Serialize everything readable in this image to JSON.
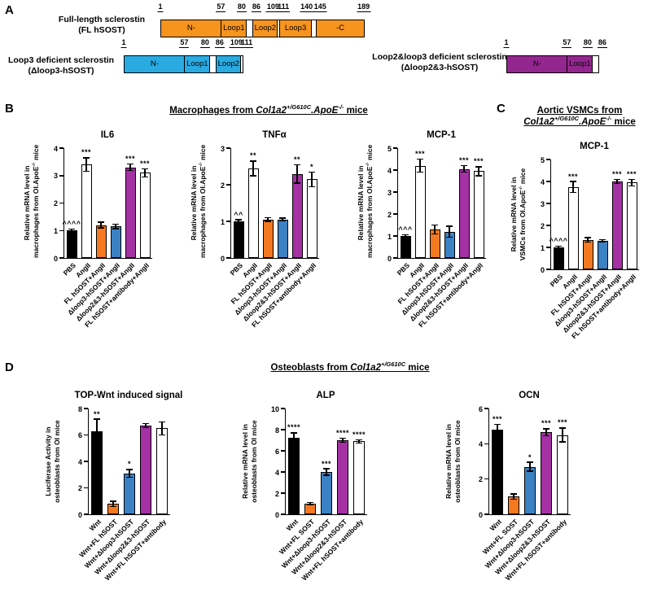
{
  "panels": {
    "A": {
      "label": "A",
      "constructs": [
        {
          "id": "fl-hsost",
          "name_lines": [
            "Full-length sclerostin",
            "(FL hSOST)"
          ],
          "color": "#F7941E",
          "ticks": [
            1,
            57,
            80,
            86,
            109,
            111,
            140,
            145,
            189
          ],
          "segments": [
            {
              "label": "N-",
              "from": 1,
              "to": 57,
              "filled": true
            },
            {
              "label": "Loop1",
              "from": 57,
              "to": 80,
              "filled": true
            },
            {
              "label": "",
              "from": 80,
              "to": 86,
              "filled": false
            },
            {
              "label": "Loop2",
              "from": 86,
              "to": 109,
              "filled": true
            },
            {
              "label": "",
              "from": 109,
              "to": 111,
              "filled": false
            },
            {
              "label": "Loop3",
              "from": 111,
              "to": 140,
              "filled": true
            },
            {
              "label": "",
              "from": 140,
              "to": 145,
              "filled": false
            },
            {
              "label": "-C",
              "from": 145,
              "to": 189,
              "filled": true
            }
          ]
        },
        {
          "id": "dloop3-hsost",
          "name_lines": [
            "Loop3 deficient sclerostin",
            "(Δloop3-hSOST)"
          ],
          "color": "#29ABE2",
          "ticks": [
            1,
            57,
            80,
            86,
            109,
            111
          ],
          "segments": [
            {
              "label": "N-",
              "from": 1,
              "to": 57,
              "filled": true
            },
            {
              "label": "Loop1",
              "from": 57,
              "to": 80,
              "filled": true
            },
            {
              "label": "",
              "from": 80,
              "to": 86,
              "filled": false
            },
            {
              "label": "Loop2",
              "from": 86,
              "to": 109,
              "filled": true
            },
            {
              "label": "",
              "from": 109,
              "to": 111,
              "filled": false
            }
          ]
        },
        {
          "id": "dloop23-hsost",
          "name_lines": [
            "Loop2&loop3 deficient sclerostin",
            "(Δloop2&3-hSOST)"
          ],
          "color": "#94278F",
          "ticks": [
            1,
            57,
            80,
            86
          ],
          "segments": [
            {
              "label": "N-",
              "from": 1,
              "to": 57,
              "filled": true
            },
            {
              "label": "Loop1",
              "from": 57,
              "to": 80,
              "filled": true
            },
            {
              "label": "",
              "from": 80,
              "to": 86,
              "filled": false
            }
          ]
        }
      ]
    },
    "B": {
      "label": "B",
      "header_lines": [
        [
          {
            "t": "Macrophages from "
          },
          {
            "t": "Col1a2",
            "i": true
          },
          {
            "t": "+/G610C",
            "i": true,
            "sup": true
          },
          {
            "t": ".",
            "i": true
          },
          {
            "t": "ApoE",
            "i": true
          },
          {
            "t": "-/-",
            "i": true,
            "sup": true
          },
          {
            "t": " mice"
          }
        ]
      ]
    },
    "C": {
      "label": "C",
      "header_lines": [
        [
          {
            "t": "Aortic VSMCs from"
          }
        ],
        [
          {
            "t": "Col1a2",
            "i": true
          },
          {
            "t": "+/G610C",
            "i": true,
            "sup": true
          },
          {
            "t": ".",
            "i": true
          },
          {
            "t": "ApoE",
            "i": true
          },
          {
            "t": "-/-",
            "i": true,
            "sup": true
          },
          {
            "t": " mice"
          }
        ]
      ]
    },
    "D": {
      "label": "D",
      "header_lines": [
        [
          {
            "t": "Osteoblasts from "
          },
          {
            "t": "Col1a2",
            "i": true
          },
          {
            "t": "+/G610C",
            "i": true,
            "sup": true
          },
          {
            "t": " mice"
          }
        ]
      ]
    }
  },
  "chart_data": [
    {
      "panel": "B",
      "type": "bar",
      "title": "IL6",
      "ylabel_lines": [
        "Relative mRNA level in",
        "macrophages from OI.ApoE^{-/-} mice"
      ],
      "ylim": [
        0,
        4
      ],
      "yticks": [
        0,
        1,
        2,
        3,
        4
      ],
      "categories": [
        "PBS",
        "AngII",
        "FL hSOST+AngII",
        "Δloop3-hSOST+AngII",
        "Δloop2&3-hSOST+AngII",
        "FL hSOST+antibody+AngII"
      ],
      "values": [
        1.0,
        3.4,
        1.2,
        1.15,
        3.3,
        3.1
      ],
      "errors": [
        0.05,
        0.25,
        0.1,
        0.08,
        0.12,
        0.15
      ],
      "significance": [
        "^^^^",
        "***",
        "",
        "",
        "***",
        "***"
      ],
      "bar_colors": [
        "#000000",
        "#FFFFFF",
        "#F47920",
        "#3B82C4",
        "#A531A5",
        "#FFFFFF"
      ]
    },
    {
      "panel": "B",
      "type": "bar",
      "title": "TNFα",
      "ylabel_lines": [
        "Relative mRNA level in",
        "macrophages from OI.ApoE^{-/-} mice"
      ],
      "ylim": [
        0,
        3
      ],
      "yticks": [
        0,
        1,
        2,
        3
      ],
      "categories": [
        "PBS",
        "AngII",
        "FL hSOST+AngII",
        "Δloop3-hSOST+AngII",
        "Δloop2&3-hSOST+AngII",
        "FL hSOST+antibody+AngII"
      ],
      "values": [
        1.0,
        2.45,
        1.05,
        1.05,
        2.3,
        2.15
      ],
      "errors": [
        0.04,
        0.2,
        0.05,
        0.04,
        0.25,
        0.2
      ],
      "significance": [
        "^^",
        "**",
        "",
        "",
        "**",
        "*"
      ],
      "bar_colors": [
        "#000000",
        "#FFFFFF",
        "#F47920",
        "#3B82C4",
        "#A531A5",
        "#FFFFFF"
      ]
    },
    {
      "panel": "B",
      "type": "bar",
      "title": "MCP-1",
      "ylabel_lines": [
        "Relative mRNA level in",
        "macrophages from OI.ApoE^{-/-} mice"
      ],
      "ylim": [
        0,
        5
      ],
      "yticks": [
        0,
        1,
        2,
        3,
        4,
        5
      ],
      "categories": [
        "PBS",
        "AngII",
        "FL hSOST+AngII",
        "Δloop3-hSOST+AngII",
        "Δloop2&3-hSOST+AngII",
        "FL hSOST+antibody+AngII"
      ],
      "values": [
        1.0,
        4.2,
        1.3,
        1.2,
        4.05,
        3.95
      ],
      "errors": [
        0.05,
        0.3,
        0.2,
        0.25,
        0.15,
        0.2
      ],
      "significance": [
        "^^^",
        "***",
        "",
        "",
        "***",
        "***"
      ],
      "bar_colors": [
        "#000000",
        "#FFFFFF",
        "#F47920",
        "#3B82C4",
        "#A531A5",
        "#FFFFFF"
      ]
    },
    {
      "panel": "C",
      "type": "bar",
      "title": "MCP-1",
      "ylabel_lines": [
        "Relative mRNA level in",
        "VSMCs from OI.ApoE^{-/-} mice"
      ],
      "ylim": [
        0,
        5
      ],
      "yticks": [
        0,
        1,
        2,
        3,
        4,
        5
      ],
      "categories": [
        "PBS",
        "AngII",
        "FL hSOST+AngII",
        "Δloop3-hSOST+AngII",
        "Δloop2&3-hSOST+AngII",
        "FL hSOST+antibody+AngII"
      ],
      "values": [
        1.0,
        3.75,
        1.35,
        1.3,
        4.0,
        3.95
      ],
      "errors": [
        0.05,
        0.25,
        0.1,
        0.05,
        0.1,
        0.15
      ],
      "significance": [
        "^^^^",
        "***",
        "",
        "",
        "***",
        "***"
      ],
      "bar_colors": [
        "#000000",
        "#FFFFFF",
        "#F47920",
        "#3B82C4",
        "#A531A5",
        "#FFFFFF"
      ]
    },
    {
      "panel": "D",
      "type": "bar",
      "title": "TOP-Wnt induced signal",
      "ylabel_lines": [
        "Luciferase Activity in",
        "osteoblasts from OI mice"
      ],
      "ylim": [
        0,
        8
      ],
      "yticks": [
        0,
        2,
        4,
        6,
        8
      ],
      "categories": [
        "Wnt",
        "Wnt+FL hSOST",
        "Wnt+Δloop3-hSOST",
        "Wnt+Δloop2&3-hSOST",
        "Wnt+FL hSOST+antibody"
      ],
      "values": [
        6.3,
        0.8,
        3.1,
        6.7,
        6.5
      ],
      "errors": [
        0.9,
        0.2,
        0.3,
        0.15,
        0.5
      ],
      "significance": [
        "**",
        "",
        "*",
        "",
        ""
      ],
      "bar_colors": [
        "#000000",
        "#F47920",
        "#3B82C4",
        "#A531A5",
        "#FFFFFF"
      ]
    },
    {
      "panel": "D",
      "type": "bar",
      "title": "ALP",
      "ylabel_lines": [
        "Relative mRNA level in",
        "osteoblasts from OI mice"
      ],
      "ylim": [
        0,
        10
      ],
      "yticks": [
        0,
        2,
        4,
        6,
        8,
        10
      ],
      "categories": [
        "Wnt",
        "Wnt+FL SOST",
        "Wnt+Δloop3-hSOST",
        "Wnt+Δloop2&3-hSOST",
        "Wnt+FL hSOST+antibody"
      ],
      "values": [
        7.2,
        1.0,
        4.0,
        7.0,
        6.9
      ],
      "errors": [
        0.5,
        0.1,
        0.3,
        0.2,
        0.15
      ],
      "significance": [
        "****",
        "",
        "***",
        "****",
        "****"
      ],
      "bar_colors": [
        "#000000",
        "#F47920",
        "#3B82C4",
        "#A531A5",
        "#FFFFFF"
      ]
    },
    {
      "panel": "D",
      "type": "bar",
      "title": "OCN",
      "ylabel_lines": [
        "Relative mRNA level in",
        "osteoblasts from OI mice"
      ],
      "ylim": [
        0,
        6
      ],
      "yticks": [
        0,
        2,
        4,
        6
      ],
      "categories": [
        "Wnt",
        "Wnt+FL SOST",
        "Wnt+Δloop3-hSOST",
        "Wnt+Δloop2&3-hSOST",
        "Wnt+FL hSOST+antibody"
      ],
      "values": [
        4.8,
        1.0,
        2.7,
        4.65,
        4.5
      ],
      "errors": [
        0.3,
        0.15,
        0.25,
        0.2,
        0.4
      ],
      "significance": [
        "***",
        "",
        "*",
        "***",
        "***"
      ],
      "bar_colors": [
        "#000000",
        "#F47920",
        "#3B82C4",
        "#A531A5",
        "#FFFFFF"
      ]
    }
  ]
}
